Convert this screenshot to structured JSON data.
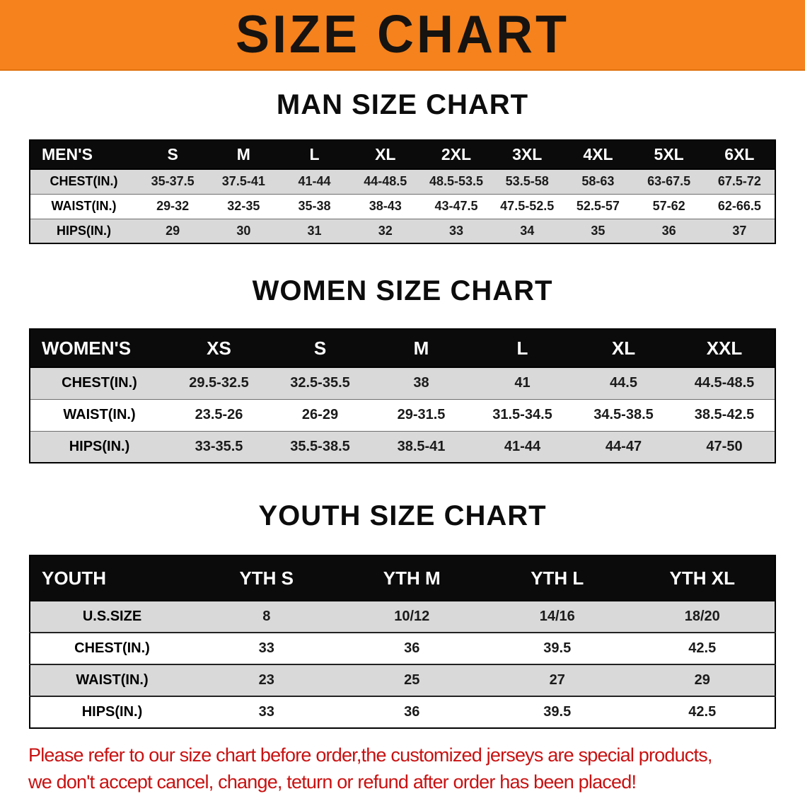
{
  "banner": {
    "title": "SIZE CHART",
    "background_color": "#f5821d",
    "text_color": "#161310"
  },
  "sections": [
    {
      "heading": "MAN SIZE CHART",
      "table": {
        "header": [
          "MEN'S",
          "S",
          "M",
          "L",
          "XL",
          "2XL",
          "3XL",
          "4XL",
          "5XL",
          "6XL"
        ],
        "rows": [
          {
            "label": "CHEST(IN.)",
            "values": [
              "35-37.5",
              "37.5-41",
              "41-44",
              "44-48.5",
              "48.5-53.5",
              "53.5-58",
              "58-63",
              "63-67.5",
              "67.5-72"
            ]
          },
          {
            "label": "WAIST(IN.)",
            "values": [
              "29-32",
              "32-35",
              "35-38",
              "38-43",
              "43-47.5",
              "47.5-52.5",
              "52.5-57",
              "57-62",
              "62-66.5"
            ]
          },
          {
            "label": "HIPS(IN.)",
            "values": [
              "29",
              "30",
              "31",
              "32",
              "33",
              "34",
              "35",
              "36",
              "37"
            ]
          }
        ]
      }
    },
    {
      "heading": "WOMEN SIZE CHART",
      "table": {
        "header": [
          "WOMEN'S",
          "XS",
          "S",
          "M",
          "L",
          "XL",
          "XXL"
        ],
        "rows": [
          {
            "label": "CHEST(IN.)",
            "values": [
              "29.5-32.5",
              "32.5-35.5",
              "38",
              "41",
              "44.5",
              "44.5-48.5"
            ]
          },
          {
            "label": "WAIST(IN.)",
            "values": [
              "23.5-26",
              "26-29",
              "29-31.5",
              "31.5-34.5",
              "34.5-38.5",
              "38.5-42.5"
            ]
          },
          {
            "label": "HIPS(IN.)",
            "values": [
              "33-35.5",
              "35.5-38.5",
              "38.5-41",
              "41-44",
              "44-47",
              "47-50"
            ]
          }
        ]
      }
    },
    {
      "heading": "YOUTH SIZE CHART",
      "table": {
        "header": [
          "YOUTH",
          "YTH S",
          "YTH M",
          "YTH L",
          "YTH XL"
        ],
        "rows": [
          {
            "label": "U.S.SIZE",
            "values": [
              "8",
              "10/12",
              "14/16",
              "18/20"
            ]
          },
          {
            "label": "CHEST(IN.)",
            "values": [
              "33",
              "36",
              "39.5",
              "42.5"
            ]
          },
          {
            "label": "WAIST(IN.)",
            "values": [
              "23",
              "25",
              "27",
              "29"
            ]
          },
          {
            "label": "HIPS(IN.)",
            "values": [
              "33",
              "36",
              "39.5",
              "42.5"
            ]
          }
        ]
      }
    }
  ],
  "footer": {
    "line1": "Please refer to our size chart before order,the customized jerseys are special products,",
    "line2": "we don't accept cancel, change, teturn or refund after order has been placed!",
    "text_color": "#c91111"
  },
  "row_stripe_color": "#d9d9d9",
  "table_header_color": "#0b0b0b"
}
